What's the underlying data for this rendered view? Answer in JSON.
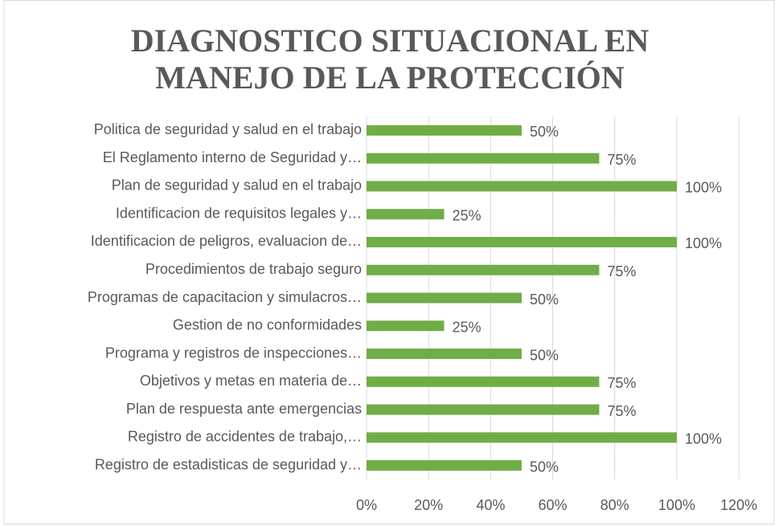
{
  "chart_data": {
    "type": "bar",
    "orientation": "horizontal",
    "title": "DIAGNOSTICO SITUACIONAL EN MANEJO DE LA PROTECCIÓN",
    "categories": [
      "Politica de seguridad y salud en el trabajo",
      "El Reglamento interno de Seguridad y…",
      "Plan de seguridad y salud en el trabajo",
      "Identificacion de requisitos legales y…",
      "Identificacion de peligros, evaluacion de…",
      "Procedimientos de trabajo seguro",
      "Programas de capacitacion y simulacros…",
      "Gestion de no conformidades",
      "Programa y registros de inspecciones…",
      "Objetivos y metas en materia de…",
      "Plan de respuesta ante emergencias",
      "Registro de accidentes de trabajo,…",
      "Registro de estadisticas de seguridad y…"
    ],
    "values": [
      50,
      75,
      100,
      25,
      100,
      75,
      50,
      25,
      50,
      75,
      75,
      100,
      50
    ],
    "value_labels": [
      "50%",
      "75%",
      "100%",
      "25%",
      "100%",
      "75%",
      "50%",
      "25%",
      "50%",
      "75%",
      "75%",
      "100%",
      "50%"
    ],
    "color": "#70ad47",
    "xlim": [
      0,
      120
    ],
    "xticks": [
      {
        "value": 0,
        "label": "0%"
      },
      {
        "value": 20,
        "label": "20%"
      },
      {
        "value": 40,
        "label": "40%"
      },
      {
        "value": 60,
        "label": "60%"
      },
      {
        "value": 80,
        "label": "80%"
      },
      {
        "value": 100,
        "label": "100%"
      },
      {
        "value": 120,
        "label": "120%"
      }
    ],
    "grid": true
  }
}
